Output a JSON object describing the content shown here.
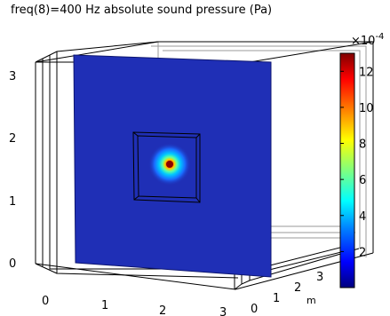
{
  "title": "freq(8)=400 Hz  absolute sound pressure (Pa)",
  "colors": {
    "domain_blue": "#1f2fb6",
    "hotspot_center": "#b30000",
    "colormap": [
      "#00007f",
      "#0000ff",
      "#007fff",
      "#00ffff",
      "#7fff7f",
      "#ffff00",
      "#ff7f00",
      "#ff0000",
      "#7f0000"
    ]
  },
  "chart_data": {
    "type": "heatmap",
    "plot_kind": "3d-slice",
    "title": "freq(8)=400 Hz  absolute sound pressure (Pa)",
    "x_axis": {
      "ticks": [
        "0",
        "1",
        "2",
        "3"
      ]
    },
    "y_axis": {
      "ticks": [
        "0",
        "1",
        "2",
        "3"
      ],
      "label": "m"
    },
    "z_axis": {
      "ticks": [
        "0",
        "1",
        "2",
        "3"
      ]
    },
    "colorbar": {
      "range": [
        0,
        13
      ],
      "multiplier": "×10",
      "exponent": "-4",
      "ticks": [
        "2",
        "4",
        "6",
        "8",
        "10",
        "12"
      ],
      "tick_values": [
        2,
        4,
        6,
        8,
        10,
        12
      ]
    },
    "hotspot": {
      "x": 1.5,
      "z": 1.55,
      "max_value": 13
    },
    "grid": false
  }
}
